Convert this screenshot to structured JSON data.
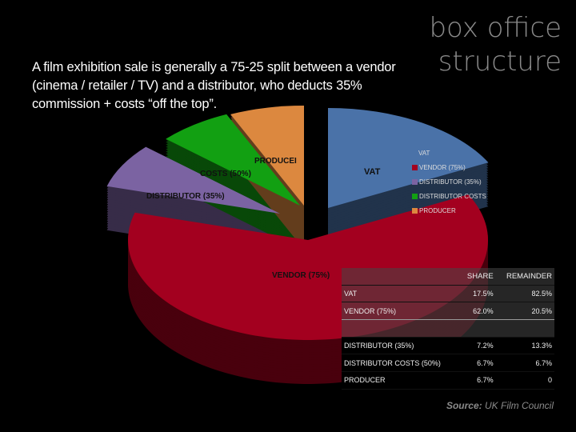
{
  "title_line1": "box office",
  "title_line2": "structure",
  "intro": "A film exhibition sale is generally a 75-25 split between a vendor (cinema / retailer / TV) and a distributor, who deducts 35% commission + costs “off the top”.",
  "chart_data": {
    "type": "pie",
    "title": "",
    "legend_title": "VAT",
    "legend_placement": "right",
    "slices": [
      {
        "label": "VAT",
        "pie_label": "VAT",
        "legend": "VAT",
        "value": 17.5,
        "color": "#4a72a8"
      },
      {
        "label": "VENDOR (75%)",
        "pie_label": "VENDOR (75%)",
        "legend": "VENDOR (75%)",
        "value": 62.0,
        "color": "#a3001f"
      },
      {
        "label": "DISTRIBUTOR (35%)",
        "pie_label": "DISTRIBUTOR (35%)",
        "legend": "DISTRIBUTOR (35%)",
        "value": 7.2,
        "color": "#7b63a2"
      },
      {
        "label": "DISTRIBUTOR COSTS (50%)",
        "pie_label": "COSTS (50%)",
        "legend": "DISTRIBUTOR COSTS",
        "value": 6.7,
        "color": "#12a012"
      },
      {
        "label": "PRODUCER",
        "pie_label": "PRODUCEI",
        "legend": "PRODUCER",
        "value": 6.7,
        "color": "#dc883f"
      }
    ]
  },
  "table": {
    "headers": [
      "",
      "SHARE",
      "REMAINDER"
    ],
    "rows": [
      [
        "VAT",
        "17.5%",
        "82.5%"
      ],
      [
        "VENDOR (75%)",
        "62.0%",
        "20.5%"
      ],
      [
        "",
        "",
        ""
      ],
      [
        "DISTRIBUTOR (35%)",
        "7.2%",
        "13.3%"
      ],
      [
        "DISTRIBUTOR COSTS (50%)",
        "6.7%",
        "6.7%"
      ],
      [
        "PRODUCER",
        "6.7%",
        "0"
      ]
    ]
  },
  "source_label": "Source:",
  "source_text": "UK Film Council"
}
